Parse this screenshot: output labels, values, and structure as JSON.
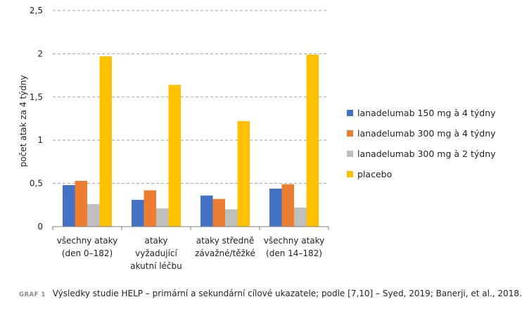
{
  "chart_data": {
    "type": "bar",
    "ylabel": "počet atak za 4 týdny",
    "xlabel": "",
    "ylim": [
      0,
      2.5
    ],
    "yticks": [
      "0",
      "0,5",
      "1",
      "1,5",
      "2",
      "2,5"
    ],
    "ytick_values": [
      0,
      0.5,
      1,
      1.5,
      2,
      2.5
    ],
    "grid": true,
    "legend_position": "right",
    "categories": [
      [
        "všechny ataky",
        "(den 0–182)"
      ],
      [
        "ataky",
        "vyžadující",
        "akutní léčbu"
      ],
      [
        "ataky středně",
        "závažné/těžké"
      ],
      [
        "všechny ataky",
        "(den 14–182)"
      ]
    ],
    "series": [
      {
        "name": "lanadelumab 150 mg à 4 týdny",
        "color": "#4472C4",
        "values": [
          0.48,
          0.31,
          0.36,
          0.44
        ]
      },
      {
        "name": "lanadelumab 300 mg à 4 týdny",
        "color": "#ED7D31",
        "values": [
          0.53,
          0.42,
          0.32,
          0.49
        ]
      },
      {
        "name": "lanadelumab 300 mg à 2 týdny",
        "color": "#BFBFBF",
        "values": [
          0.26,
          0.21,
          0.2,
          0.22
        ]
      },
      {
        "name": "placebo",
        "color": "#FFC000",
        "values": [
          1.97,
          1.64,
          1.22,
          1.99
        ]
      }
    ]
  },
  "caption": {
    "tag": "GRAF 1",
    "text": "Výsledky studie HELP – primární a sekundární cílové ukazatele; podle [7,10] – Syed, 2019; Banerji, et al., 2018."
  }
}
